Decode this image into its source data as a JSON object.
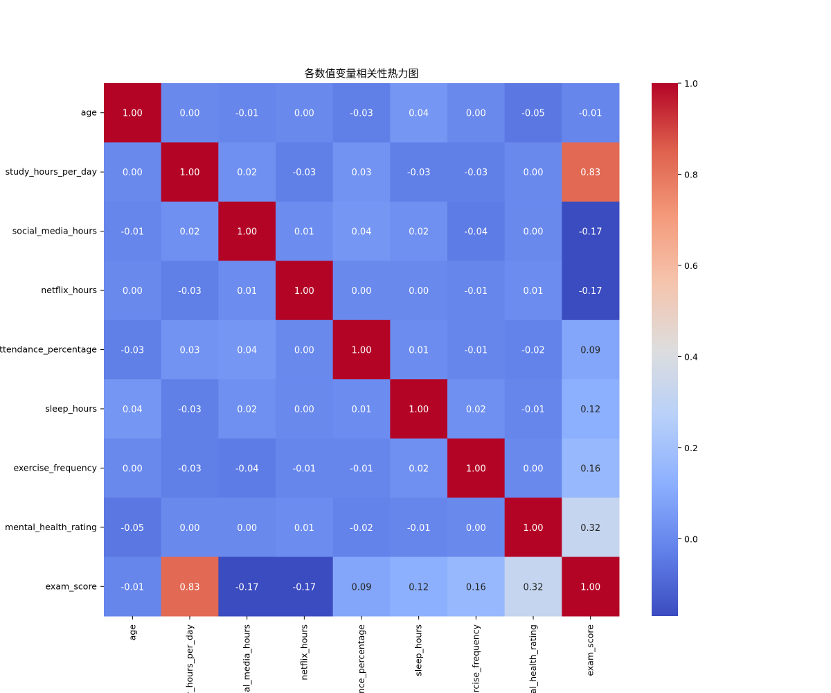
{
  "chart_data": {
    "type": "heatmap",
    "title": "各数值变量相关性热力图",
    "labels": [
      "age",
      "study_hours_per_day",
      "social_media_hours",
      "netflix_hours",
      "attendance_percentage",
      "sleep_hours",
      "exercise_frequency",
      "mental_health_rating",
      "exam_score"
    ],
    "matrix": [
      [
        1.0,
        0.0,
        -0.01,
        -0.0,
        -0.03,
        0.04,
        -0.0,
        -0.05,
        -0.01
      ],
      [
        0.0,
        1.0,
        0.02,
        -0.03,
        0.03,
        -0.03,
        -0.03,
        -0.0,
        0.83
      ],
      [
        -0.01,
        0.02,
        1.0,
        0.01,
        0.04,
        0.02,
        -0.04,
        0.0,
        -0.17
      ],
      [
        -0.0,
        -0.03,
        0.01,
        1.0,
        -0.0,
        -0.0,
        -0.01,
        0.01,
        -0.17
      ],
      [
        -0.03,
        0.03,
        0.04,
        -0.0,
        1.0,
        0.01,
        -0.01,
        -0.02,
        0.09
      ],
      [
        0.04,
        -0.03,
        0.02,
        -0.0,
        0.01,
        1.0,
        0.02,
        -0.01,
        0.12
      ],
      [
        -0.0,
        -0.03,
        -0.04,
        -0.01,
        -0.01,
        0.02,
        1.0,
        -0.0,
        0.16
      ],
      [
        -0.05,
        -0.0,
        0.0,
        0.01,
        -0.02,
        -0.01,
        -0.0,
        1.0,
        0.32
      ],
      [
        -0.01,
        0.83,
        -0.17,
        -0.17,
        0.09,
        0.12,
        0.16,
        0.32,
        1.0
      ]
    ],
    "value_format": "2 decimals",
    "colormap": "coolwarm",
    "colorbar": {
      "min": -0.17,
      "max": 1.0,
      "ticks": [
        "0.0",
        "0.2",
        "0.4",
        "0.6",
        "0.8",
        "1.0"
      ]
    }
  }
}
